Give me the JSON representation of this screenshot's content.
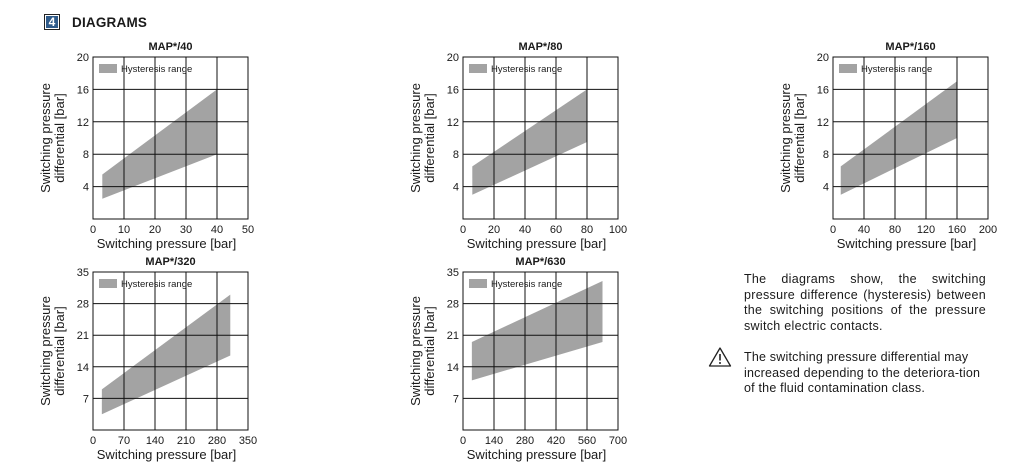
{
  "section": {
    "number": "4",
    "title": "DIAGRAMS"
  },
  "chart_data": [
    {
      "id": "c1",
      "type": "area",
      "title": "MAP*/40",
      "xlabel": "Switching pressure [bar]",
      "ylabel": [
        "Switching pressure",
        "differential [bar]"
      ],
      "xlim": [
        0,
        50
      ],
      "ylim": [
        0,
        20
      ],
      "xticks": [
        0,
        10,
        20,
        30,
        40,
        50
      ],
      "yticks": [
        4,
        8,
        12,
        16,
        20
      ],
      "grid": true,
      "legend": "top-left",
      "series": [
        {
          "name": "Hysteresis range",
          "color": "#a3a3a3",
          "x": [
            3,
            40
          ],
          "upper": [
            5.5,
            16
          ],
          "lower": [
            2.5,
            8
          ]
        }
      ]
    },
    {
      "id": "c2",
      "type": "area",
      "title": "MAP*/80",
      "xlabel": "Switching pressure [bar]",
      "ylabel": [
        "Switching pressure",
        "differential [bar]"
      ],
      "xlim": [
        0,
        100
      ],
      "ylim": [
        0,
        20
      ],
      "xticks": [
        0,
        20,
        40,
        60,
        80,
        100
      ],
      "yticks": [
        4,
        8,
        12,
        16,
        20
      ],
      "grid": true,
      "legend": "top-left",
      "series": [
        {
          "name": "Hysteresis range",
          "color": "#a3a3a3",
          "x": [
            6,
            80
          ],
          "upper": [
            6.5,
            16
          ],
          "lower": [
            3,
            9.5
          ]
        }
      ]
    },
    {
      "id": "c3",
      "type": "area",
      "title": "MAP*/160",
      "xlabel": "Switching pressure [bar]",
      "ylabel": [
        "Switching pressure",
        "differential [bar]"
      ],
      "xlim": [
        0,
        200
      ],
      "ylim": [
        0,
        20
      ],
      "xticks": [
        0,
        40,
        80,
        120,
        160,
        200
      ],
      "yticks": [
        4,
        8,
        12,
        16,
        20
      ],
      "grid": true,
      "legend": "top-left",
      "series": [
        {
          "name": "Hysteresis range",
          "color": "#a3a3a3",
          "x": [
            10,
            160
          ],
          "upper": [
            6.5,
            17
          ],
          "lower": [
            3,
            10
          ]
        }
      ]
    },
    {
      "id": "c4",
      "type": "area",
      "title": "MAP*/320",
      "xlabel": "Switching pressure [bar]",
      "ylabel": [
        "Switching pressure",
        "differential [bar]"
      ],
      "xlim": [
        0,
        350
      ],
      "ylim": [
        0,
        35
      ],
      "xticks": [
        0,
        70,
        140,
        210,
        280,
        350
      ],
      "yticks": [
        7,
        14,
        21,
        28,
        35
      ],
      "grid": true,
      "legend": "top-left",
      "series": [
        {
          "name": "Hysteresis range",
          "color": "#a3a3a3",
          "x": [
            20,
            310
          ],
          "upper": [
            9,
            30
          ],
          "lower": [
            3.5,
            16.5
          ]
        }
      ]
    },
    {
      "id": "c5",
      "type": "area",
      "title": "MAP*/630",
      "xlabel": "Switching pressure [bar]",
      "ylabel": [
        "Switching pressure",
        "differential [bar]"
      ],
      "xlim": [
        0,
        700
      ],
      "ylim": [
        0,
        35
      ],
      "xticks": [
        0,
        140,
        280,
        420,
        560,
        700
      ],
      "yticks": [
        7,
        14,
        21,
        28,
        35
      ],
      "grid": true,
      "legend": "top-left",
      "series": [
        {
          "name": "Hysteresis range",
          "color": "#a3a3a3",
          "x": [
            40,
            630
          ],
          "upper": [
            19.5,
            33
          ],
          "lower": [
            11,
            19.5
          ]
        }
      ]
    }
  ],
  "note": "The diagrams show, the switching pressure difference (hysteresis) between the switching positions of the pressure switch electric contacts.",
  "warning": {
    "icon": "warning-triangle-icon",
    "text": "The switching pressure differential may increased depending to the deteriora-tion of the fluid contamination class."
  }
}
